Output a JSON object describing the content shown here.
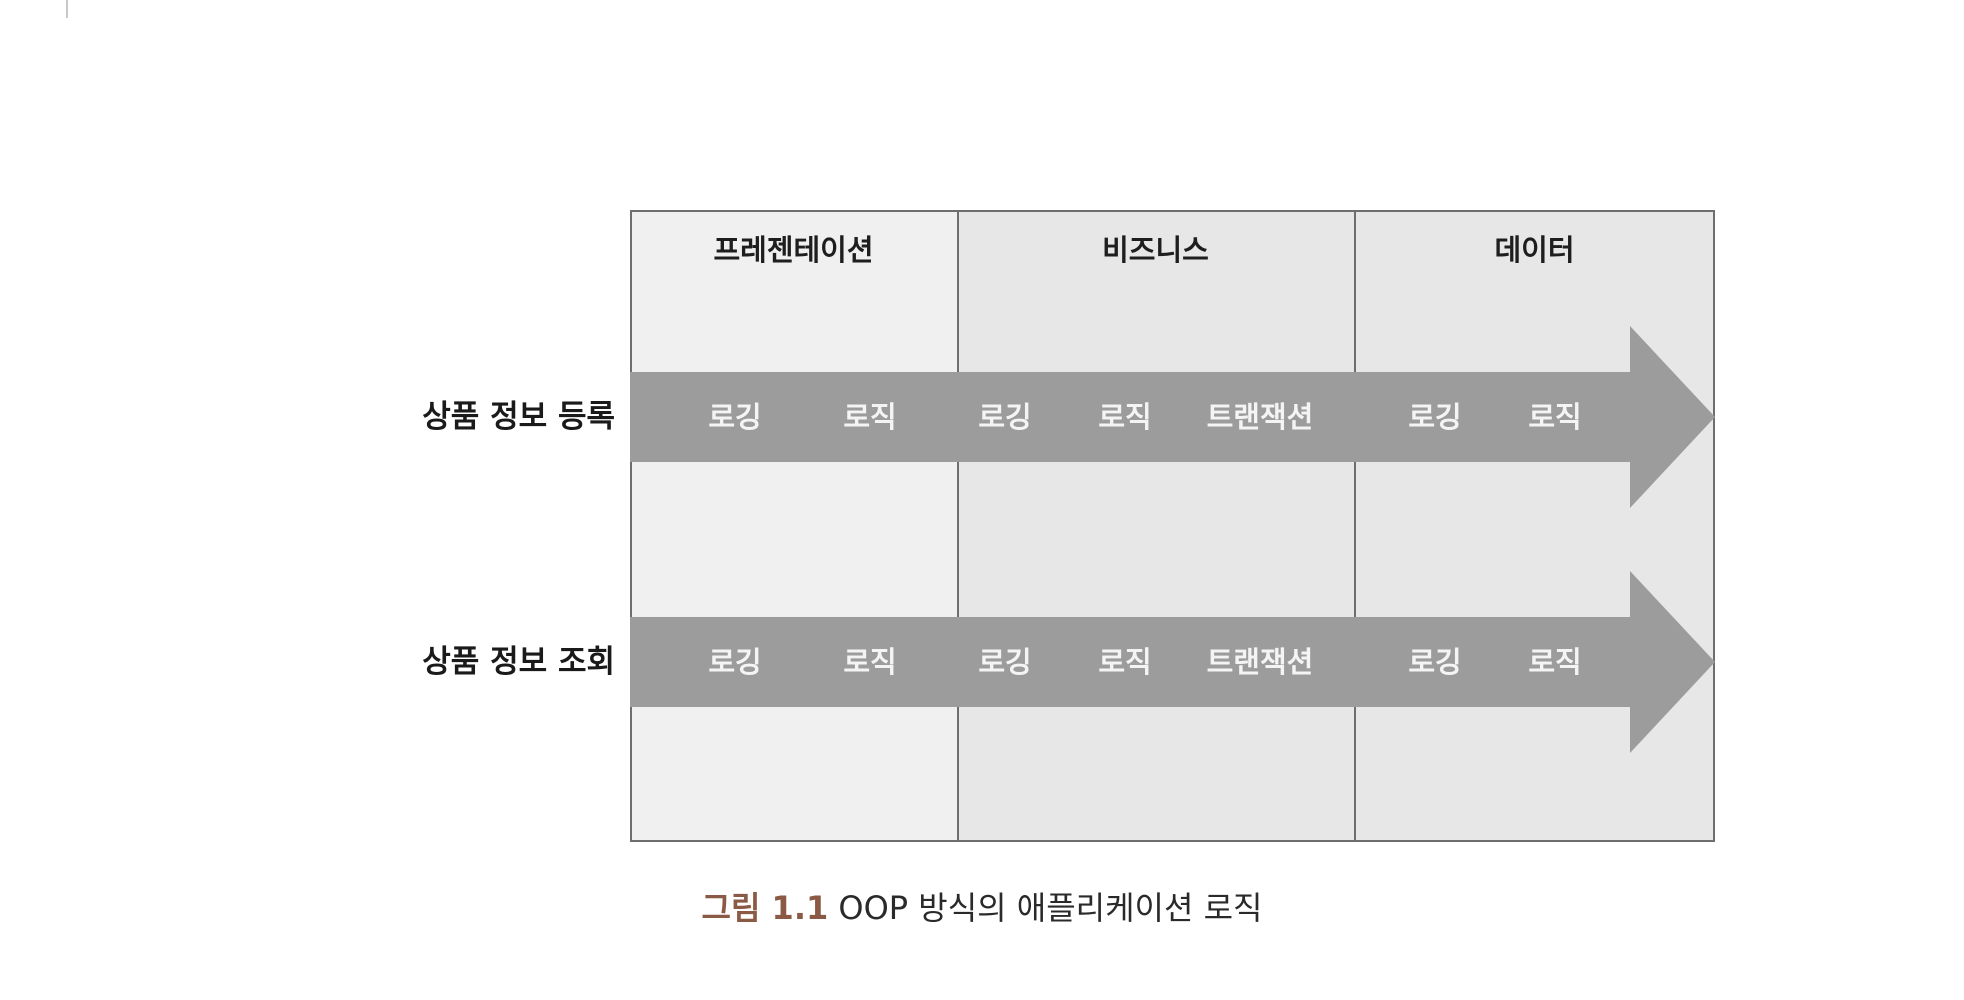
{
  "columns": {
    "presentation": "프레젠테이션",
    "business": "비즈니스",
    "data": "데이터"
  },
  "rows": [
    {
      "label": "상품 정보 등록",
      "steps": [
        "로깅",
        "로직",
        "로깅",
        "로직",
        "트랜잭션",
        "로깅",
        "로직"
      ]
    },
    {
      "label": "상품 정보 조회",
      "steps": [
        "로깅",
        "로직",
        "로깅",
        "로직",
        "트랜잭션",
        "로깅",
        "로직"
      ]
    }
  ],
  "caption": {
    "number": "그림 1.1",
    "text": "OOP 방식의 애플리케이션 로직"
  },
  "colors": {
    "arrow": "#9c9c9c",
    "caption_number": "#8a5a45",
    "border": "#6e6e6e"
  }
}
